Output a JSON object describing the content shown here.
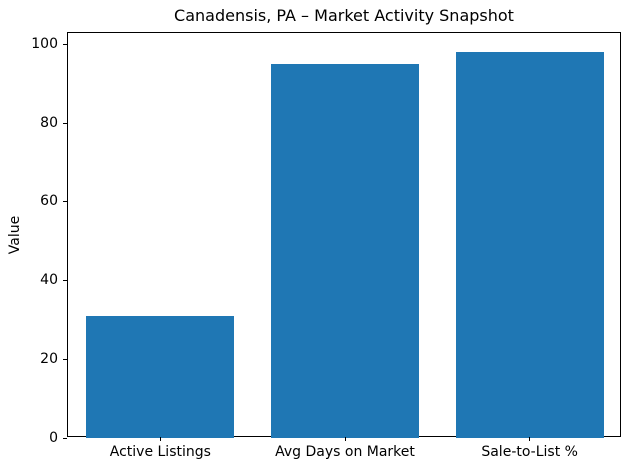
{
  "chart_data": {
    "type": "bar",
    "title": "Canadensis, PA – Market Activity Snapshot",
    "xlabel": "",
    "ylabel": "Value",
    "categories": [
      "Active Listings",
      "Avg Days on Market",
      "Sale-to-List %"
    ],
    "values": [
      31,
      95,
      98
    ],
    "yticks": [
      0,
      20,
      40,
      60,
      80,
      100
    ],
    "ylim": [
      0,
      102.9
    ],
    "xlim": [
      -0.5,
      2.5
    ],
    "bar_color": "#1f77b4",
    "bar_width_fraction": 0.8,
    "grid": false,
    "legend": null,
    "spine_color": "#000000",
    "background_color": "#ffffff"
  }
}
